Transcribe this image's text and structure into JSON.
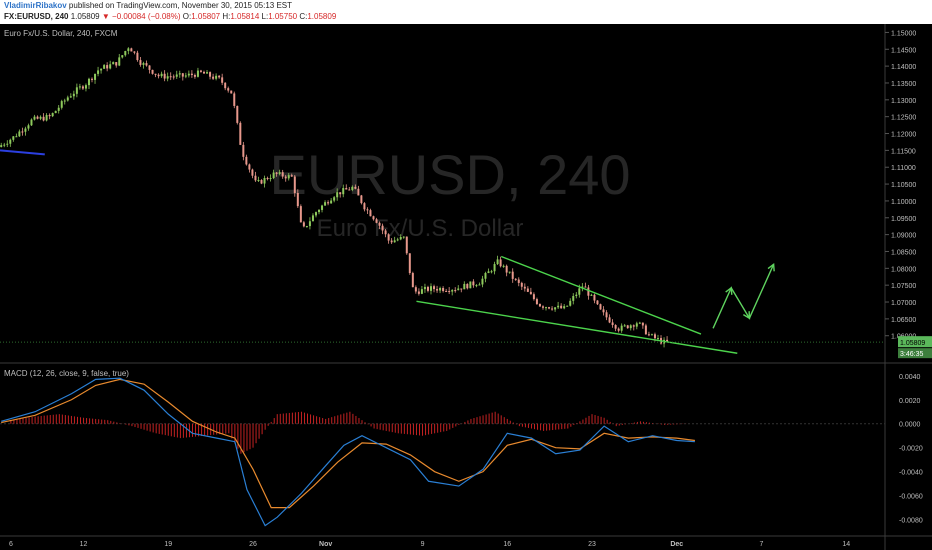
{
  "header": {
    "author": "VladimirRibakov",
    "published": "published on TradingView.com, November 30, 2015 05:13 EST",
    "symbol": "FX:EURUSD, 240",
    "last": "1.05809",
    "arrow": "▼",
    "change": "−0.00084 (−0.08%)",
    "o_label": "O:",
    "o": "1.05807",
    "h_label": "H:",
    "h": "1.05814",
    "l_label": "L:",
    "l": "1.05750",
    "c_label": "C:",
    "c": "1.05809"
  },
  "colors": {
    "background": "#000000",
    "up_candle": "#8ec95c",
    "down_candle": "#e8988c",
    "wedge_line": "#4cd34c",
    "projection_arrow": "#5fd35f",
    "macd_line": "#2a7fd4",
    "signal_line": "#e88a2e",
    "histogram": "#c42222",
    "blue_level": "#2b3fe0",
    "axis_text": "#bfbfbf",
    "watermark": "#262626"
  },
  "chart_data": [
    {
      "type": "candlestick",
      "title": "Euro Fx/U.S. Dollar, 240, FXCM",
      "watermark_symbol": "EURUSD, 240",
      "watermark_name": "Euro Fx/U.S. Dollar",
      "ylim": [
        1.0525,
        1.1525
      ],
      "y_ticks": [
        "1.15000",
        "1.14500",
        "1.14000",
        "1.13500",
        "1.13000",
        "1.12500",
        "1.12000",
        "1.11500",
        "1.11000",
        "1.10500",
        "1.10000",
        "1.09500",
        "1.09000",
        "1.08500",
        "1.08000",
        "1.07500",
        "1.07000",
        "1.06500",
        "1.06000"
      ],
      "x_ticks": [
        "6",
        "12",
        "19",
        "26",
        "Nov",
        "9",
        "16",
        "23",
        "Dec",
        "7",
        "14"
      ],
      "x_tick_days": [
        6,
        12,
        19,
        26,
        32,
        40,
        47,
        54,
        61,
        68,
        75
      ],
      "xlim_days": [
        5.1,
        78.2
      ],
      "last_price": "1.05809",
      "countdown": "3:46:35",
      "price_path": [
        [
          5.2,
          1.116
        ],
        [
          6.5,
          1.119
        ],
        [
          8,
          1.124
        ],
        [
          9.5,
          1.125
        ],
        [
          11,
          1.131
        ],
        [
          12.5,
          1.135
        ],
        [
          13.5,
          1.139
        ],
        [
          15,
          1.141
        ],
        [
          16,
          1.146
        ],
        [
          17,
          1.141
        ],
        [
          18.5,
          1.137
        ],
        [
          20.5,
          1.137
        ],
        [
          22,
          1.138
        ],
        [
          23.5,
          1.136
        ],
        [
          24.5,
          1.132
        ],
        [
          25.3,
          1.115
        ],
        [
          26.5,
          1.105
        ],
        [
          28,
          1.108
        ],
        [
          29.5,
          1.107
        ],
        [
          30.3,
          1.091
        ],
        [
          31.5,
          1.097
        ],
        [
          33,
          1.102
        ],
        [
          34.5,
          1.104
        ],
        [
          35.5,
          1.098
        ],
        [
          36.5,
          1.094
        ],
        [
          37.5,
          1.088
        ],
        [
          38.7,
          1.089
        ],
        [
          39.5,
          1.073
        ],
        [
          41,
          1.074
        ],
        [
          43,
          1.074
        ],
        [
          45,
          1.076
        ],
        [
          46.5,
          1.082
        ],
        [
          48,
          1.076
        ],
        [
          50,
          1.069
        ],
        [
          52,
          1.068
        ],
        [
          53.5,
          1.075
        ],
        [
          55,
          1.067
        ],
        [
          56.5,
          1.062
        ],
        [
          58,
          1.064
        ],
        [
          59,
          1.06
        ],
        [
          60.2,
          1.058
        ]
      ],
      "upper_trendline": [
        [
          46.5,
          1.0835
        ],
        [
          63,
          1.0605
        ]
      ],
      "lower_trendline": [
        [
          39.5,
          1.0702
        ],
        [
          66,
          1.0548
        ]
      ],
      "projection_path": [
        [
          64,
          1.0622
        ],
        [
          65.5,
          1.0742
        ],
        [
          67,
          1.0652
        ],
        [
          69,
          1.0812
        ]
      ],
      "blue_level": {
        "x": [
          5.1,
          8.8
        ],
        "y": 1.115
      }
    },
    {
      "type": "line",
      "title": "MACD (12, 26, close, 9, false, true)",
      "ylim": [
        -0.0092,
        0.0049
      ],
      "y_ticks": [
        "0.0040",
        "0.0020",
        "0.0000",
        "-0.0020",
        "-0.0040",
        "-0.0060",
        "-0.0080"
      ],
      "series": [
        {
          "role": "macd",
          "points": [
            [
              5.2,
              0.0002
            ],
            [
              8,
              0.001
            ],
            [
              11,
              0.0025
            ],
            [
              13,
              0.0037
            ],
            [
              15,
              0.0038
            ],
            [
              17,
              0.0028
            ],
            [
              19,
              0.0008
            ],
            [
              21,
              -0.0008
            ],
            [
              23,
              -0.0012
            ],
            [
              24.5,
              -0.0015
            ],
            [
              25.5,
              -0.0055
            ],
            [
              27,
              -0.0085
            ],
            [
              28,
              -0.0078
            ],
            [
              30,
              -0.0058
            ],
            [
              32,
              -0.0035
            ],
            [
              33.5,
              -0.0018
            ],
            [
              35,
              -0.001
            ],
            [
              37,
              -0.002
            ],
            [
              39,
              -0.003
            ],
            [
              40.5,
              -0.0048
            ],
            [
              43,
              -0.0052
            ],
            [
              45,
              -0.0038
            ],
            [
              47,
              -0.0008
            ],
            [
              49,
              -0.0012
            ],
            [
              51,
              -0.0025
            ],
            [
              53,
              -0.0022
            ],
            [
              55,
              -0.0002
            ],
            [
              57,
              -0.0015
            ],
            [
              59,
              -0.001
            ],
            [
              61,
              -0.0014
            ],
            [
              62.5,
              -0.0015
            ]
          ]
        },
        {
          "role": "signal",
          "points": [
            [
              5.2,
              0.0001
            ],
            [
              8,
              0.0007
            ],
            [
              11,
              0.002
            ],
            [
              13,
              0.0032
            ],
            [
              15,
              0.0037
            ],
            [
              17,
              0.0033
            ],
            [
              19,
              0.0018
            ],
            [
              21,
              0.0002
            ],
            [
              23,
              -0.0007
            ],
            [
              24.5,
              -0.0012
            ],
            [
              26,
              -0.0038
            ],
            [
              27.5,
              -0.007
            ],
            [
              29,
              -0.007
            ],
            [
              31,
              -0.0052
            ],
            [
              33,
              -0.0032
            ],
            [
              35,
              -0.0016
            ],
            [
              37,
              -0.0017
            ],
            [
              39,
              -0.0026
            ],
            [
              41,
              -0.004
            ],
            [
              43,
              -0.0048
            ],
            [
              45,
              -0.004
            ],
            [
              47,
              -0.0018
            ],
            [
              49,
              -0.0013
            ],
            [
              51,
              -0.002
            ],
            [
              53,
              -0.0021
            ],
            [
              55,
              -0.0008
            ],
            [
              57,
              -0.0012
            ],
            [
              59,
              -0.0011
            ],
            [
              61,
              -0.0012
            ],
            [
              62.5,
              -0.0014
            ]
          ]
        },
        {
          "role": "histogram",
          "points": [
            [
              6,
              0.0003
            ],
            [
              8,
              0.0006
            ],
            [
              10,
              0.0008
            ],
            [
              12,
              0.0005
            ],
            [
              14,
              0.0003
            ],
            [
              16,
              -0.0002
            ],
            [
              18,
              -0.0008
            ],
            [
              20,
              -0.0012
            ],
            [
              22,
              -0.001
            ],
            [
              24,
              -0.0008
            ],
            [
              25,
              -0.0025
            ],
            [
              26,
              -0.002
            ],
            [
              27,
              -0.0005
            ],
            [
              28,
              0.0008
            ],
            [
              30,
              0.001
            ],
            [
              32,
              0.0004
            ],
            [
              34,
              0.001
            ],
            [
              36,
              -0.0004
            ],
            [
              38,
              -0.0008
            ],
            [
              40,
              -0.001
            ],
            [
              42,
              -0.0006
            ],
            [
              44,
              0.0004
            ],
            [
              46,
              0.001
            ],
            [
              48,
              -0.0002
            ],
            [
              50,
              -0.0006
            ],
            [
              52,
              -0.0004
            ],
            [
              54,
              0.0008
            ],
            [
              55,
              0.0005
            ],
            [
              56,
              -0.0002
            ],
            [
              58,
              0.0002
            ],
            [
              60,
              -0.0001
            ],
            [
              62,
              0
            ]
          ]
        }
      ]
    }
  ]
}
